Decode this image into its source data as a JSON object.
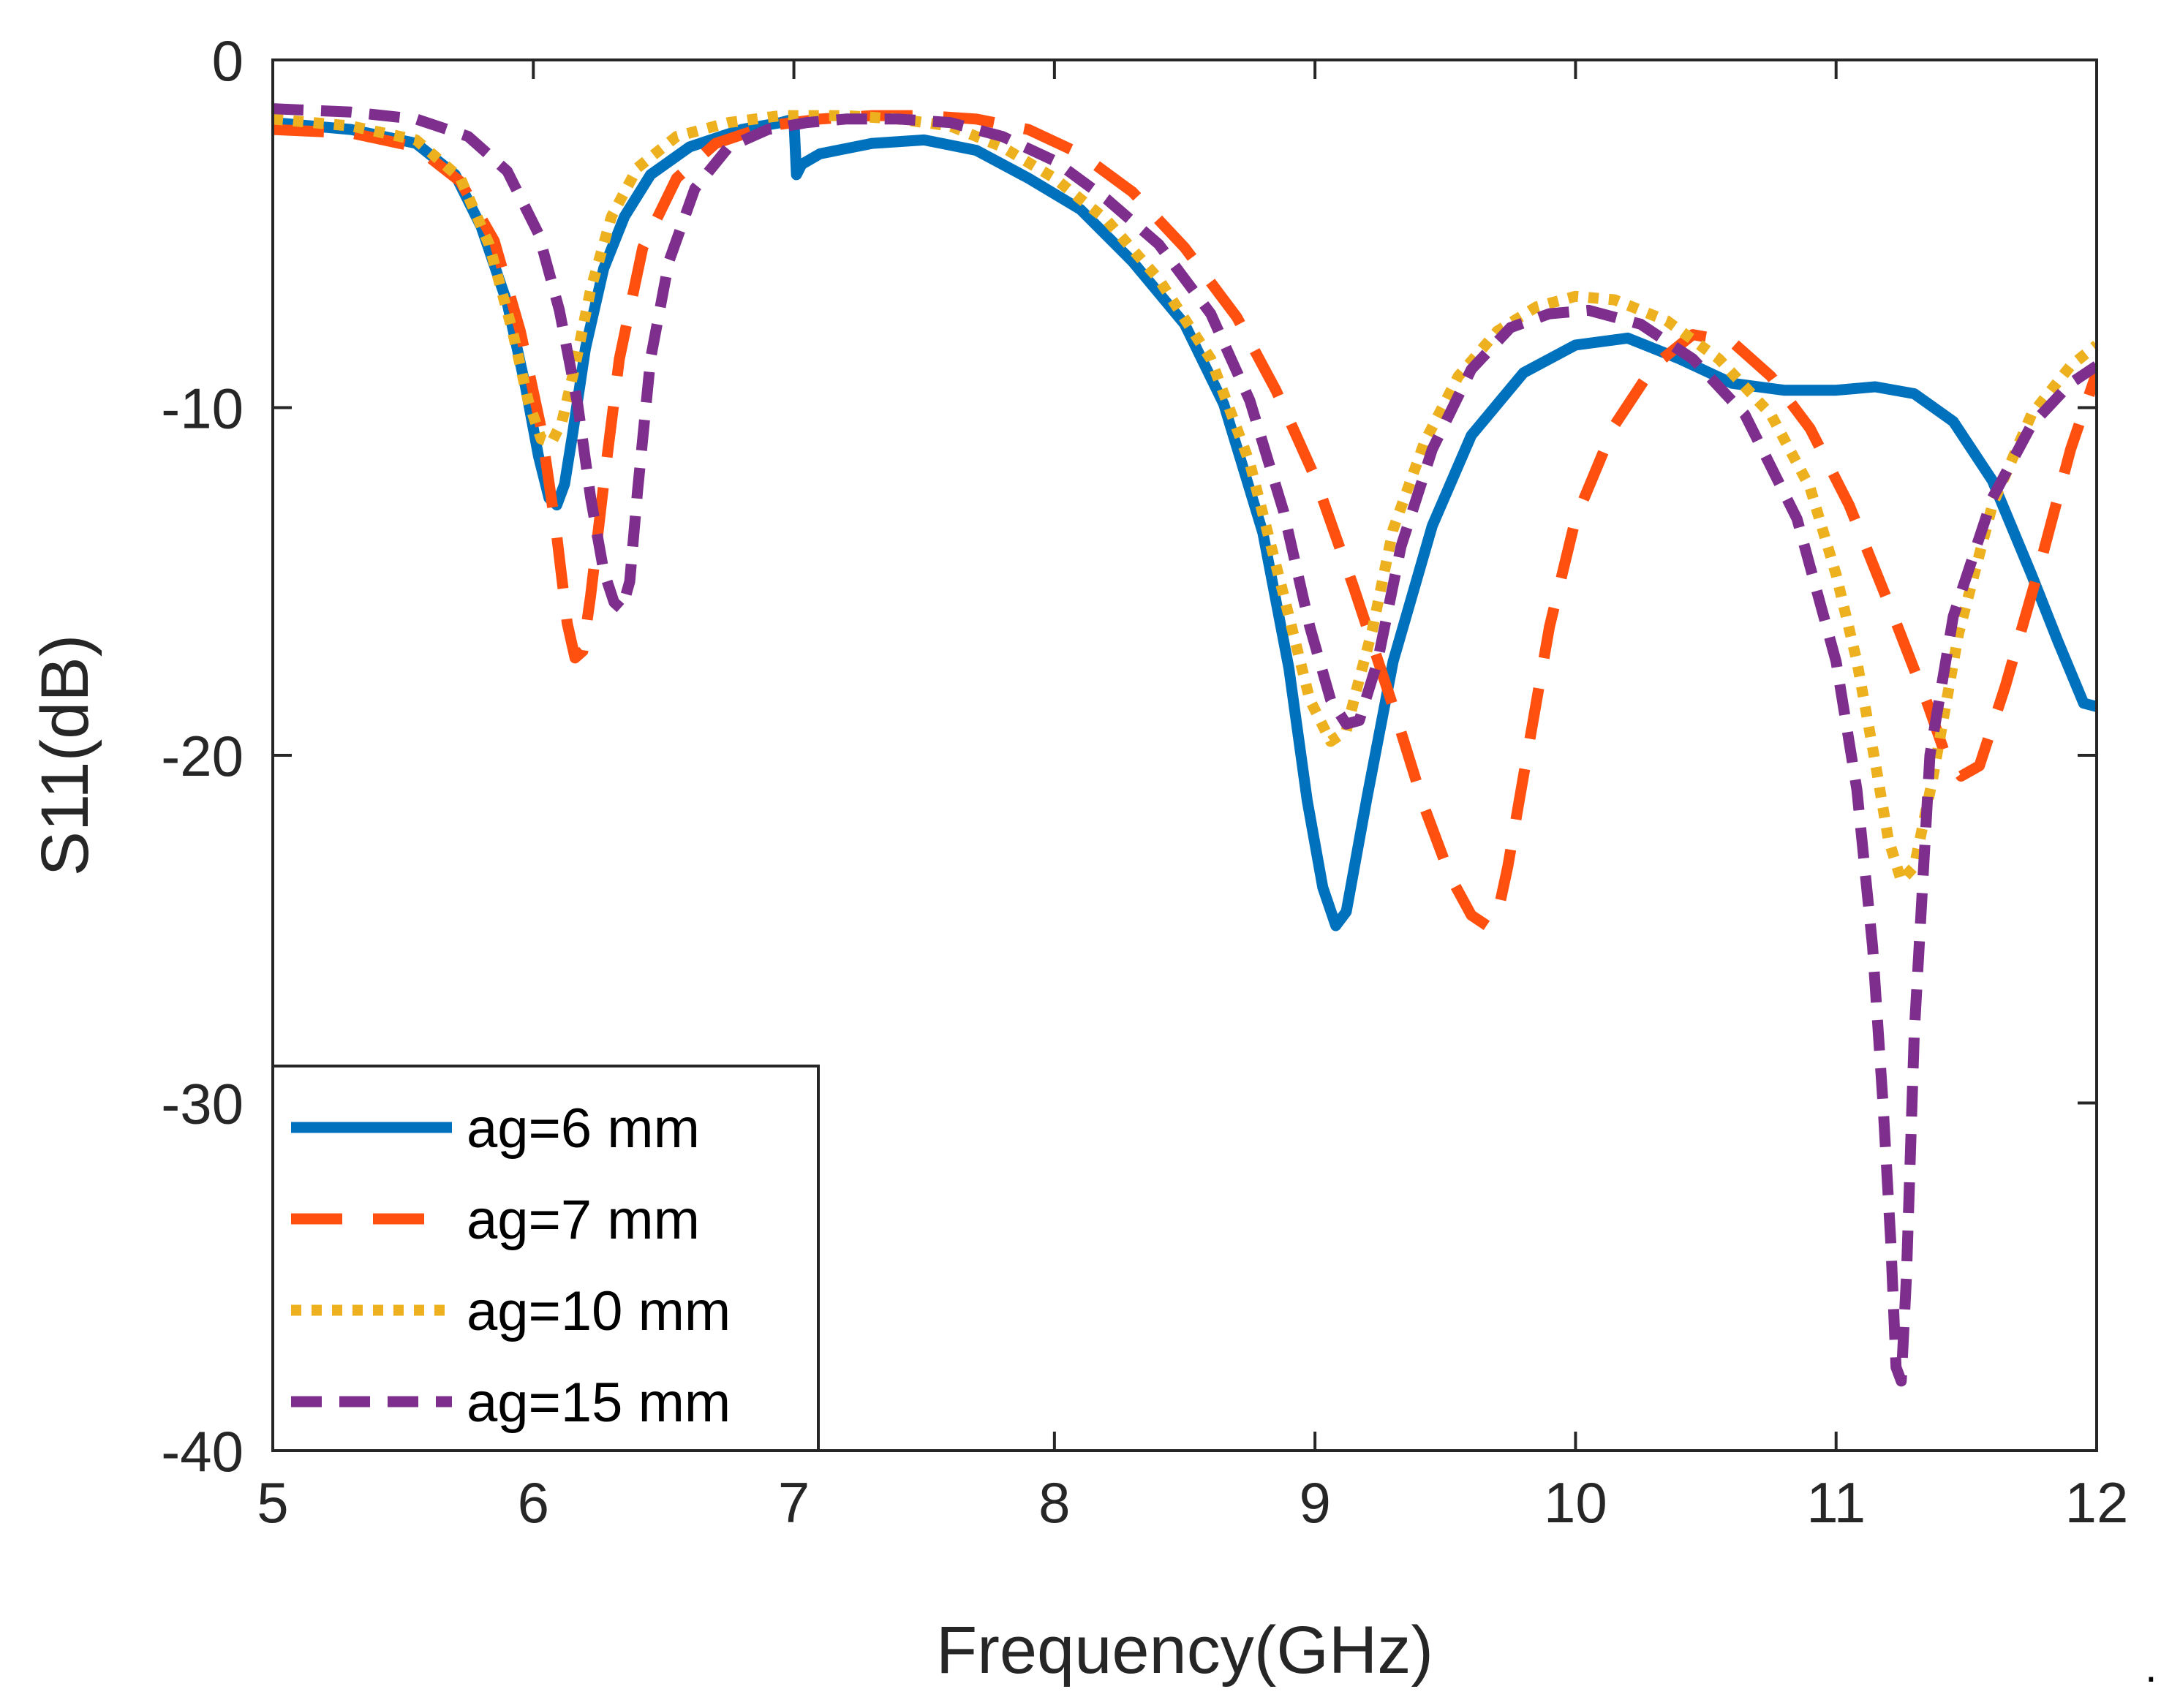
{
  "chart_data": {
    "type": "line",
    "title": "",
    "xlabel": "Frequency(GHz)",
    "ylabel": "S11(dB)",
    "xlim": [
      5,
      12
    ],
    "ylim": [
      -40,
      0
    ],
    "xticks": [
      5,
      6,
      7,
      8,
      9,
      10,
      11,
      12
    ],
    "yticks": [
      0,
      -10,
      -20,
      -30,
      -40
    ],
    "grid": false,
    "legend_position": "bottom-left",
    "trailing_mark": ".",
    "series": [
      {
        "name": "ag=6 mm",
        "color": "#0072BD",
        "dash": "solid",
        "x": [
          5.0,
          5.3,
          5.55,
          5.7,
          5.8,
          5.9,
          5.97,
          6.02,
          6.06,
          6.09,
          6.12,
          6.15,
          6.2,
          6.27,
          6.35,
          6.45,
          6.6,
          6.8,
          6.95,
          7.0,
          7.01,
          7.03,
          7.1,
          7.3,
          7.5,
          7.7,
          7.9,
          8.1,
          8.3,
          8.5,
          8.65,
          8.8,
          8.9,
          8.97,
          9.03,
          9.08,
          9.12,
          9.2,
          9.3,
          9.45,
          9.6,
          9.8,
          10.0,
          10.2,
          10.4,
          10.6,
          10.8,
          11.0,
          11.15,
          11.3,
          11.45,
          11.6,
          11.75,
          11.85,
          11.95,
          12.0
        ],
        "y": [
          -1.8,
          -2.0,
          -2.4,
          -3.3,
          -4.8,
          -7.0,
          -9.4,
          -11.4,
          -12.6,
          -12.8,
          -12.2,
          -10.8,
          -8.3,
          -6.0,
          -4.5,
          -3.3,
          -2.5,
          -2.0,
          -1.8,
          -1.7,
          -3.3,
          -3.0,
          -2.7,
          -2.4,
          -2.3,
          -2.6,
          -3.4,
          -4.3,
          -5.8,
          -7.6,
          -9.9,
          -13.6,
          -17.5,
          -21.3,
          -23.8,
          -24.9,
          -24.5,
          -21.2,
          -17.3,
          -13.4,
          -10.8,
          -9.0,
          -8.2,
          -8.0,
          -8.6,
          -9.3,
          -9.5,
          -9.5,
          -9.4,
          -9.6,
          -10.4,
          -12.1,
          -14.8,
          -16.7,
          -18.5,
          -18.6
        ]
      },
      {
        "name": "ag=7 mm",
        "color": "#FF5010",
        "dash": "long-dash",
        "x": [
          5.0,
          5.3,
          5.55,
          5.72,
          5.85,
          5.95,
          6.03,
          6.09,
          6.13,
          6.16,
          6.19,
          6.22,
          6.27,
          6.33,
          6.42,
          6.55,
          6.7,
          6.9,
          7.1,
          7.3,
          7.5,
          7.7,
          7.9,
          8.1,
          8.3,
          8.5,
          8.7,
          8.85,
          9.0,
          9.15,
          9.3,
          9.42,
          9.52,
          9.6,
          9.66,
          9.7,
          9.74,
          9.8,
          9.9,
          10.0,
          10.15,
          10.3,
          10.45,
          10.6,
          10.75,
          10.9,
          11.05,
          11.2,
          11.35,
          11.42,
          11.48,
          11.55,
          11.65,
          11.78,
          11.9,
          12.0
        ],
        "y": [
          -2.0,
          -2.1,
          -2.5,
          -3.5,
          -5.2,
          -7.8,
          -10.6,
          -13.7,
          -16.2,
          -17.2,
          -17.0,
          -15.4,
          -12.2,
          -8.6,
          -5.4,
          -3.4,
          -2.4,
          -1.9,
          -1.7,
          -1.6,
          -1.6,
          -1.7,
          -2.0,
          -2.7,
          -3.8,
          -5.4,
          -7.4,
          -9.5,
          -12.0,
          -15.2,
          -18.6,
          -21.5,
          -23.5,
          -24.6,
          -24.9,
          -24.6,
          -23.2,
          -20.6,
          -16.3,
          -13.2,
          -10.5,
          -8.8,
          -7.9,
          -8.1,
          -9.1,
          -10.6,
          -12.8,
          -15.6,
          -18.5,
          -20.0,
          -20.6,
          -20.3,
          -18.0,
          -14.6,
          -11.2,
          -9.0
        ]
      },
      {
        "name": "ag=10 mm",
        "color": "#EDB120",
        "dash": "dotted",
        "x": [
          5.0,
          5.3,
          5.55,
          5.72,
          5.83,
          5.92,
          5.98,
          6.03,
          6.07,
          6.11,
          6.16,
          6.22,
          6.3,
          6.4,
          6.55,
          6.75,
          6.95,
          7.2,
          7.4,
          7.6,
          7.8,
          8.0,
          8.2,
          8.4,
          8.6,
          8.75,
          8.88,
          8.98,
          9.06,
          9.12,
          9.16,
          9.22,
          9.3,
          9.42,
          9.55,
          9.7,
          9.85,
          10.0,
          10.15,
          10.35,
          10.55,
          10.75,
          10.9,
          11.0,
          11.08,
          11.15,
          11.2,
          11.25,
          11.3,
          11.37,
          11.47,
          11.6,
          11.75,
          11.9,
          12.0
        ],
        "y": [
          -1.7,
          -1.9,
          -2.3,
          -3.4,
          -5.3,
          -7.8,
          -9.8,
          -10.9,
          -11.0,
          -10.4,
          -8.8,
          -6.6,
          -4.5,
          -3.1,
          -2.2,
          -1.8,
          -1.6,
          -1.6,
          -1.7,
          -1.9,
          -2.5,
          -3.4,
          -4.6,
          -6.3,
          -8.6,
          -11.6,
          -15.4,
          -18.4,
          -19.6,
          -19.3,
          -18.1,
          -16.4,
          -13.5,
          -11.0,
          -9.1,
          -7.8,
          -7.1,
          -6.8,
          -6.9,
          -7.5,
          -8.6,
          -10.2,
          -12.3,
          -14.8,
          -17.3,
          -20.2,
          -22.4,
          -23.6,
          -23.2,
          -20.7,
          -16.5,
          -12.8,
          -10.2,
          -8.8,
          -8.2
        ]
      },
      {
        "name": "ag=15 mm",
        "color": "#7E2F8E",
        "dash": "short-dash",
        "x": [
          5.0,
          5.3,
          5.55,
          5.75,
          5.9,
          6.02,
          6.1,
          6.17,
          6.22,
          6.27,
          6.31,
          6.34,
          6.37,
          6.4,
          6.45,
          6.52,
          6.62,
          6.75,
          6.9,
          7.05,
          7.2,
          7.4,
          7.6,
          7.8,
          8.0,
          8.2,
          8.4,
          8.6,
          8.75,
          8.88,
          8.98,
          9.06,
          9.12,
          9.17,
          9.24,
          9.33,
          9.45,
          9.6,
          9.75,
          9.9,
          10.05,
          10.25,
          10.45,
          10.65,
          10.85,
          11.0,
          11.08,
          11.14,
          11.18,
          11.21,
          11.23,
          11.25,
          11.27,
          11.3,
          11.36,
          11.45,
          11.6,
          11.75,
          11.9,
          12.0
        ],
        "y": [
          -1.4,
          -1.5,
          -1.7,
          -2.2,
          -3.2,
          -5.0,
          -7.2,
          -9.9,
          -12.6,
          -14.7,
          -15.6,
          -15.8,
          -15.0,
          -12.4,
          -8.6,
          -5.8,
          -3.7,
          -2.5,
          -2.0,
          -1.8,
          -1.7,
          -1.7,
          -1.8,
          -2.2,
          -2.9,
          -4.0,
          -5.3,
          -7.3,
          -9.8,
          -13.0,
          -16.3,
          -18.4,
          -19.1,
          -19.0,
          -17.3,
          -14.0,
          -11.2,
          -8.9,
          -7.7,
          -7.3,
          -7.2,
          -7.6,
          -8.6,
          -10.2,
          -13.2,
          -17.3,
          -21.0,
          -25.5,
          -30.0,
          -34.0,
          -37.6,
          -38.0,
          -35.0,
          -28.0,
          -20.0,
          -16.0,
          -12.6,
          -10.5,
          -9.3,
          -8.8
        ]
      }
    ]
  }
}
